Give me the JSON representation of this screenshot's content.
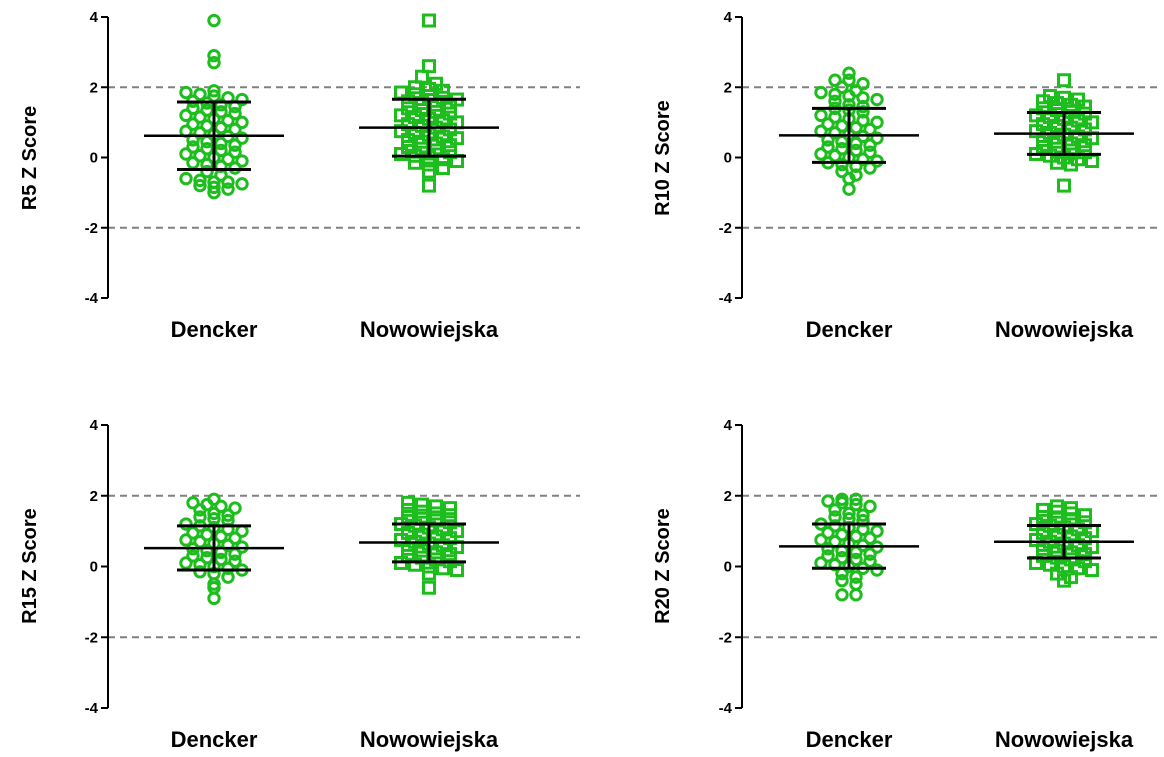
{
  "chart_data": [
    {
      "type": "scatter",
      "ylabel": "R5 Z Score",
      "ylim": [
        -4,
        4
      ],
      "yticks": [
        "4",
        "2",
        "0",
        "-2",
        "-4"
      ],
      "reference_lines": [
        2,
        -2
      ],
      "categories": [
        "Dencker",
        "Nowowiejska"
      ],
      "series": [
        {
          "marker": "circle",
          "mean": 0.62,
          "sd_upper": 1.58,
          "sd_lower": -0.34,
          "points": [
            3.9,
            2.9,
            2.7,
            1.9,
            1.85,
            1.8,
            1.75,
            1.7,
            1.65,
            1.6,
            1.55,
            1.5,
            1.45,
            1.4,
            1.35,
            1.3,
            1.25,
            1.2,
            1.15,
            1.1,
            1.05,
            1.0,
            0.95,
            0.9,
            0.85,
            0.8,
            0.75,
            0.7,
            0.65,
            0.6,
            0.55,
            0.5,
            0.45,
            0.4,
            0.35,
            0.3,
            0.25,
            0.2,
            0.15,
            0.1,
            0.05,
            0.0,
            -0.05,
            -0.1,
            -0.15,
            -0.2,
            -0.25,
            -0.3,
            -0.4,
            -0.5,
            -0.6,
            -0.65,
            -0.7,
            -0.7,
            -0.75,
            -0.8,
            -0.85,
            -0.9,
            -1.0
          ]
        },
        {
          "marker": "square",
          "mean": 0.85,
          "sd_upper": 1.66,
          "sd_lower": 0.04,
          "points": [
            3.9,
            2.6,
            2.3,
            2.1,
            2.0,
            1.95,
            1.9,
            1.85,
            1.8,
            1.75,
            1.7,
            1.65,
            1.6,
            1.55,
            1.5,
            1.45,
            1.4,
            1.35,
            1.3,
            1.25,
            1.2,
            1.15,
            1.1,
            1.05,
            1.0,
            0.95,
            0.9,
            0.85,
            0.8,
            0.75,
            0.7,
            0.65,
            0.6,
            0.55,
            0.5,
            0.45,
            0.4,
            0.35,
            0.3,
            0.25,
            0.2,
            0.15,
            0.1,
            0.05,
            0.0,
            -0.05,
            -0.1,
            -0.15,
            -0.2,
            -0.3,
            -0.4,
            -0.8
          ]
        }
      ]
    },
    {
      "type": "scatter",
      "ylabel": "R10 Z Score",
      "ylim": [
        -4,
        4
      ],
      "yticks": [
        "4",
        "2",
        "0",
        "-2",
        "-4"
      ],
      "reference_lines": [
        2,
        -2
      ],
      "categories": [
        "Dencker",
        "Nowowiejska"
      ],
      "series": [
        {
          "marker": "circle",
          "mean": 0.63,
          "sd_upper": 1.4,
          "sd_lower": -0.14,
          "points": [
            2.4,
            2.2,
            2.2,
            2.1,
            2.0,
            1.9,
            1.85,
            1.8,
            1.75,
            1.7,
            1.65,
            1.6,
            1.5,
            1.45,
            1.4,
            1.35,
            1.3,
            1.2,
            1.15,
            1.1,
            1.05,
            1.0,
            0.95,
            0.9,
            0.85,
            0.8,
            0.75,
            0.7,
            0.65,
            0.6,
            0.55,
            0.5,
            0.45,
            0.4,
            0.35,
            0.3,
            0.25,
            0.2,
            0.15,
            0.1,
            0.05,
            0.0,
            -0.05,
            -0.1,
            -0.15,
            -0.2,
            -0.25,
            -0.3,
            -0.4,
            -0.5,
            -0.6,
            -0.9
          ]
        },
        {
          "marker": "square",
          "mean": 0.68,
          "sd_upper": 1.28,
          "sd_lower": 0.09,
          "points": [
            2.2,
            1.75,
            1.7,
            1.65,
            1.6,
            1.55,
            1.5,
            1.45,
            1.4,
            1.35,
            1.3,
            1.25,
            1.2,
            1.15,
            1.1,
            1.05,
            1.0,
            0.95,
            0.9,
            0.85,
            0.8,
            0.75,
            0.7,
            0.65,
            0.6,
            0.55,
            0.5,
            0.45,
            0.4,
            0.35,
            0.3,
            0.25,
            0.2,
            0.15,
            0.1,
            0.05,
            0.0,
            -0.05,
            -0.1,
            -0.15,
            -0.2,
            -0.8
          ]
        }
      ]
    },
    {
      "type": "scatter",
      "ylabel": "R15 Z Score",
      "ylim": [
        -4,
        4
      ],
      "yticks": [
        "4",
        "2",
        "0",
        "-2",
        "-4"
      ],
      "reference_lines": [
        2,
        -2
      ],
      "categories": [
        "Dencker",
        "Nowowiejska"
      ],
      "series": [
        {
          "marker": "circle",
          "mean": 0.52,
          "sd_upper": 1.15,
          "sd_lower": -0.1,
          "points": [
            1.9,
            1.8,
            1.75,
            1.7,
            1.65,
            1.6,
            1.5,
            1.45,
            1.4,
            1.35,
            1.3,
            1.2,
            1.15,
            1.1,
            1.05,
            1.0,
            0.95,
            0.9,
            0.85,
            0.8,
            0.75,
            0.7,
            0.65,
            0.6,
            0.55,
            0.5,
            0.45,
            0.4,
            0.35,
            0.3,
            0.25,
            0.2,
            0.15,
            0.1,
            0.05,
            0.0,
            -0.05,
            -0.1,
            -0.15,
            -0.2,
            -0.3,
            -0.5,
            -0.6,
            -0.9
          ]
        },
        {
          "marker": "square",
          "mean": 0.68,
          "sd_upper": 1.2,
          "sd_lower": 0.13,
          "points": [
            1.8,
            1.75,
            1.7,
            1.65,
            1.6,
            1.55,
            1.5,
            1.45,
            1.4,
            1.35,
            1.3,
            1.25,
            1.2,
            1.15,
            1.1,
            1.05,
            1.0,
            0.95,
            0.9,
            0.85,
            0.8,
            0.75,
            0.7,
            0.65,
            0.6,
            0.55,
            0.5,
            0.45,
            0.4,
            0.35,
            0.3,
            0.25,
            0.2,
            0.15,
            0.1,
            0.05,
            0.0,
            -0.05,
            -0.1,
            -0.2,
            -0.6
          ]
        }
      ]
    },
    {
      "type": "scatter",
      "ylabel": "R20 Z Score",
      "ylim": [
        -4,
        4
      ],
      "yticks": [
        "4",
        "2",
        "0",
        "-2",
        "-4"
      ],
      "reference_lines": [
        2,
        -2
      ],
      "categories": [
        "Dencker",
        "Nowowiejska"
      ],
      "series": [
        {
          "marker": "circle",
          "mean": 0.57,
          "sd_upper": 1.2,
          "sd_lower": -0.05,
          "points": [
            1.9,
            1.9,
            1.85,
            1.8,
            1.75,
            1.7,
            1.6,
            1.5,
            1.45,
            1.4,
            1.35,
            1.3,
            1.2,
            1.15,
            1.1,
            1.05,
            1.0,
            0.95,
            0.9,
            0.85,
            0.8,
            0.75,
            0.7,
            0.65,
            0.6,
            0.55,
            0.5,
            0.45,
            0.4,
            0.35,
            0.3,
            0.25,
            0.2,
            0.15,
            0.1,
            0.05,
            0.0,
            -0.05,
            -0.1,
            -0.2,
            -0.3,
            -0.4,
            -0.5,
            -0.8,
            -0.8
          ]
        },
        {
          "marker": "square",
          "mean": 0.7,
          "sd_upper": 1.16,
          "sd_lower": 0.24,
          "points": [
            1.7,
            1.65,
            1.6,
            1.55,
            1.5,
            1.45,
            1.4,
            1.35,
            1.3,
            1.25,
            1.2,
            1.15,
            1.1,
            1.05,
            1.0,
            0.95,
            0.9,
            0.85,
            0.8,
            0.75,
            0.7,
            0.65,
            0.6,
            0.55,
            0.5,
            0.45,
            0.4,
            0.35,
            0.3,
            0.25,
            0.2,
            0.15,
            0.1,
            0.05,
            0.0,
            -0.05,
            -0.1,
            -0.2,
            -0.3,
            -0.4
          ]
        }
      ]
    }
  ],
  "colors": {
    "marker": "#1ebd1e",
    "bars": "#000000",
    "reference": "#808080"
  }
}
